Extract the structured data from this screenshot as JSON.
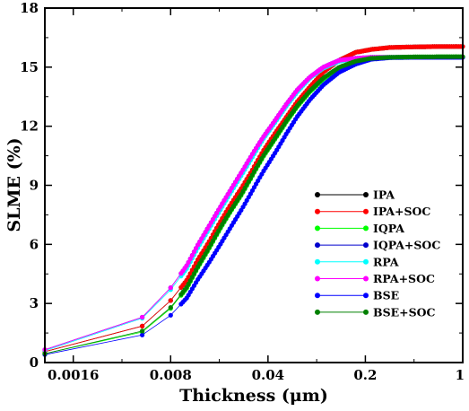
{
  "chart_data": {
    "type": "line",
    "xlabel": "Thickness (μm)",
    "ylabel": "SLME (%)",
    "xscale": "log",
    "xlim": [
      0.001,
      1
    ],
    "ylim": [
      0,
      18
    ],
    "xticks": [
      0.0016,
      0.008,
      0.04,
      0.2,
      1
    ],
    "xtick_labels": [
      "0.0016",
      "0.008",
      "0.04",
      "0.2",
      "1"
    ],
    "yticks": [
      0,
      3,
      6,
      9,
      12,
      15,
      18
    ],
    "ytick_labels": [
      "0",
      "3",
      "6",
      "9",
      "12",
      "15",
      "18"
    ],
    "grid": false,
    "legend_position": "right",
    "x": [
      0.001,
      0.005,
      0.008,
      0.0105,
      0.0125,
      0.015,
      0.018,
      0.0215,
      0.026,
      0.031,
      0.037,
      0.045,
      0.054,
      0.065,
      0.08,
      0.1,
      0.13,
      0.17,
      0.22,
      0.3,
      0.45,
      0.7,
      1.0
    ],
    "series": [
      {
        "name": "IPA",
        "color": "#000000",
        "values": [
          0.55,
          1.85,
          3.15,
          4.2,
          5.2,
          6.1,
          7.1,
          8.0,
          8.9,
          9.8,
          10.75,
          11.65,
          12.45,
          13.25,
          14.0,
          14.75,
          15.35,
          15.75,
          15.9,
          16.0,
          16.03,
          16.05,
          16.05
        ]
      },
      {
        "name": "IPA+SOC",
        "color": "#ff0000",
        "values": [
          0.55,
          1.85,
          3.15,
          4.2,
          5.2,
          6.1,
          7.1,
          8.0,
          8.9,
          9.8,
          10.75,
          11.65,
          12.45,
          13.25,
          14.0,
          14.75,
          15.35,
          15.75,
          15.9,
          16.0,
          16.03,
          16.05,
          16.05
        ]
      },
      {
        "name": "IQPA",
        "color": "#00ff00",
        "values": [
          0.45,
          1.55,
          2.75,
          3.8,
          4.8,
          5.75,
          6.75,
          7.65,
          8.55,
          9.5,
          10.45,
          11.35,
          12.2,
          13.0,
          13.75,
          14.4,
          14.95,
          15.3,
          15.45,
          15.5,
          15.52,
          15.53,
          15.53
        ]
      },
      {
        "name": "IQPA+SOC",
        "color": "#0000cd",
        "values": [
          0.65,
          2.3,
          3.8,
          4.95,
          5.95,
          6.9,
          7.85,
          8.75,
          9.7,
          10.6,
          11.45,
          12.3,
          13.1,
          13.85,
          14.5,
          15.0,
          15.35,
          15.45,
          15.5,
          15.5,
          15.5,
          15.5,
          15.5
        ]
      },
      {
        "name": "RPA",
        "color": "#00ffff",
        "values": [
          0.6,
          2.25,
          3.7,
          4.8,
          5.8,
          6.75,
          7.7,
          8.6,
          9.55,
          10.45,
          11.35,
          12.2,
          13.0,
          13.75,
          14.45,
          14.95,
          15.3,
          15.45,
          15.5,
          15.5,
          15.5,
          15.5,
          15.5
        ]
      },
      {
        "name": "RPA+SOC",
        "color": "#ff00ff",
        "values": [
          0.65,
          2.3,
          3.8,
          4.95,
          5.95,
          6.9,
          7.85,
          8.75,
          9.7,
          10.6,
          11.45,
          12.3,
          13.1,
          13.85,
          14.5,
          15.0,
          15.35,
          15.45,
          15.5,
          15.5,
          15.5,
          15.5,
          15.5
        ]
      },
      {
        "name": "BSE",
        "color": "#0000ff",
        "values": [
          0.4,
          1.4,
          2.4,
          3.3,
          4.2,
          5.05,
          5.95,
          6.85,
          7.8,
          8.75,
          9.7,
          10.65,
          11.6,
          12.5,
          13.35,
          14.1,
          14.75,
          15.15,
          15.4,
          15.48,
          15.5,
          15.5,
          15.5
        ]
      },
      {
        "name": "BSE+SOC",
        "color": "#008000",
        "values": [
          0.45,
          1.6,
          2.8,
          3.85,
          4.85,
          5.8,
          6.8,
          7.7,
          8.6,
          9.55,
          10.5,
          11.4,
          12.25,
          13.05,
          13.8,
          14.45,
          15.0,
          15.3,
          15.45,
          15.5,
          15.52,
          15.53,
          15.53
        ]
      }
    ]
  }
}
